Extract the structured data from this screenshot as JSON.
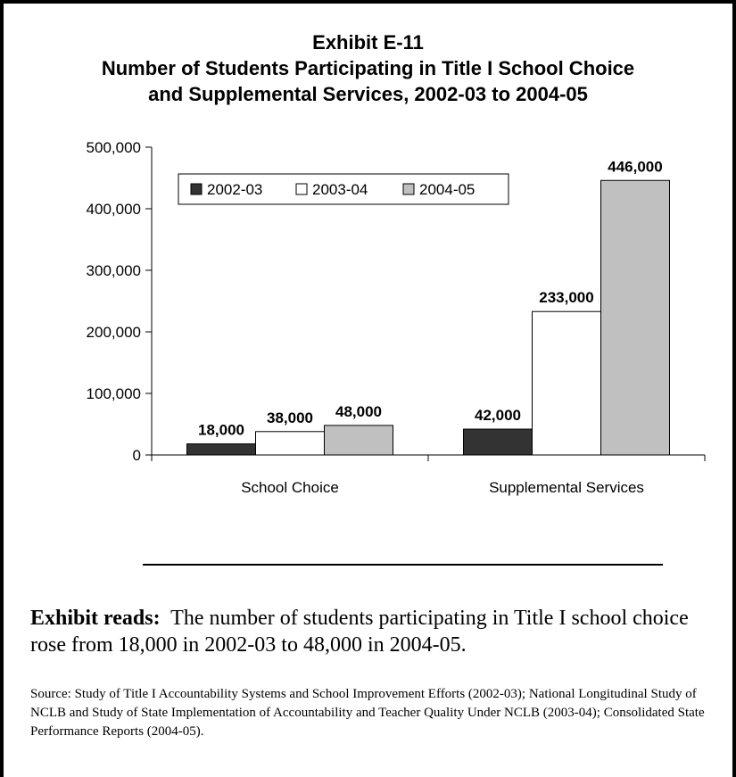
{
  "title": {
    "line1": "Exhibit E-11",
    "line2": "Number of Students Participating in Title I School Choice",
    "line3": "and Supplemental Services, 2002-03 to 2004-05"
  },
  "chart_data": {
    "type": "bar",
    "categories": [
      "School Choice",
      "Supplemental Services"
    ],
    "series": [
      {
        "name": "2002-03",
        "values": [
          18000,
          42000
        ],
        "labels": [
          "18,000",
          "42,000"
        ],
        "color": "#333333"
      },
      {
        "name": "2003-04",
        "values": [
          38000,
          233000
        ],
        "labels": [
          "38,000",
          "233,000"
        ],
        "color": "#ffffff"
      },
      {
        "name": "2004-05",
        "values": [
          48000,
          446000
        ],
        "labels": [
          "48,000",
          "446,000"
        ],
        "color": "#c0c0c0"
      }
    ],
    "yticks": [
      0,
      100000,
      200000,
      300000,
      400000,
      500000
    ],
    "ytick_labels": [
      "0",
      "100,000",
      "200,000",
      "300,000",
      "400,000",
      "500,000"
    ],
    "ylim": [
      0,
      500000
    ],
    "legend_position": "top-left"
  },
  "note": {
    "lead": "Exhibit reads:",
    "text": "The number of students participating in Title I school choice rose from 18,000 in 2002-03 to 48,000 in 2004-05."
  },
  "source": "Source:  Study of Title I Accountability Systems and School Improvement Efforts (2002-03); National Longitudinal Study of NCLB and Study of State Implementation of Accountability and Teacher Quality Under NCLB (2003-04); Consolidated State Performance Reports (2004-05)."
}
